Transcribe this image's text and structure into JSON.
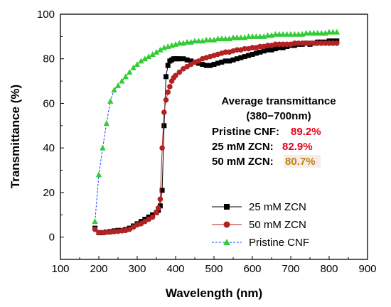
{
  "chart_data": {
    "type": "scatter",
    "title": "",
    "xlabel": "Wavelength (nm)",
    "ylabel": "Transmittance (%)",
    "xlim": [
      100,
      900
    ],
    "ylim": [
      -10,
      100
    ],
    "x_ticks": [
      "100",
      "200",
      "300",
      "400",
      "500",
      "600",
      "700",
      "800",
      "900"
    ],
    "y_ticks": [
      "0",
      "20",
      "40",
      "60",
      "80",
      "100"
    ],
    "grid": false,
    "legend_position": "bottom-right",
    "annotation": {
      "title_line1": "Average transmittance",
      "title_line2": "(380−700nm)",
      "rows": [
        {
          "label": "Pristine CNF:",
          "value": "89.2%",
          "color": "#e8001c"
        },
        {
          "label": "25 mM ZCN:",
          "value": "82.9%",
          "color": "#e8001c"
        },
        {
          "label": "50 mM ZCN:",
          "value": "80.7%",
          "color": "#b8860b"
        }
      ]
    },
    "series": [
      {
        "name": "25 mM ZCN",
        "marker": "square",
        "color": "#000000",
        "x": [
          190,
          200,
          210,
          220,
          230,
          240,
          250,
          260,
          270,
          280,
          290,
          300,
          310,
          320,
          330,
          340,
          350,
          355,
          360,
          365,
          370,
          375,
          380,
          385,
          390,
          395,
          400,
          405,
          410,
          420,
          430,
          440,
          450,
          460,
          470,
          480,
          490,
          500,
          510,
          520,
          530,
          540,
          550,
          560,
          570,
          580,
          590,
          600,
          610,
          620,
          630,
          640,
          650,
          660,
          670,
          680,
          690,
          700,
          710,
          720,
          730,
          740,
          750,
          760,
          770,
          780,
          790,
          800,
          810,
          820
        ],
        "y": [
          4,
          2,
          2,
          2.3,
          2.5,
          2.8,
          3,
          3,
          3.4,
          4,
          5,
          6,
          7,
          8,
          9,
          10,
          11,
          12,
          14,
          21,
          50,
          72,
          77,
          79,
          79.5,
          80,
          80,
          80,
          80,
          80,
          79.5,
          79,
          78.5,
          78,
          77.5,
          77,
          77,
          77.5,
          78,
          78.5,
          79,
          79,
          79.5,
          80,
          80.5,
          81,
          81.5,
          82,
          82.5,
          83,
          83.5,
          84,
          84,
          84.5,
          85,
          85,
          85.5,
          86,
          86,
          86.5,
          86.5,
          87,
          86.5,
          87,
          87.5,
          87.5,
          87.5,
          88,
          88,
          88
        ]
      },
      {
        "name": "50 mM ZCN",
        "marker": "circle",
        "color": "#b22222",
        "x": [
          190,
          200,
          210,
          220,
          230,
          240,
          250,
          260,
          270,
          280,
          290,
          300,
          310,
          320,
          330,
          340,
          350,
          355,
          360,
          365,
          370,
          375,
          380,
          385,
          390,
          395,
          400,
          410,
          420,
          430,
          440,
          450,
          460,
          470,
          480,
          490,
          500,
          510,
          520,
          530,
          540,
          550,
          560,
          570,
          580,
          590,
          600,
          610,
          620,
          630,
          640,
          650,
          660,
          670,
          680,
          690,
          700,
          710,
          720,
          730,
          740,
          750,
          760,
          770,
          780,
          790,
          800,
          810,
          820
        ],
        "y": [
          3.5,
          2,
          2,
          2.2,
          2.3,
          2.5,
          2.6,
          2.8,
          3,
          3.5,
          4.5,
          5.5,
          6,
          7,
          8,
          9,
          11,
          13,
          17,
          40,
          56,
          61.5,
          65,
          67.5,
          70,
          71.5,
          72.5,
          74,
          75.5,
          76.5,
          77.5,
          78.5,
          79,
          80,
          80.5,
          81,
          81.5,
          82,
          82.5,
          83,
          83,
          83.5,
          84,
          84,
          84.5,
          84.5,
          85,
          85,
          85.5,
          85.5,
          86,
          86,
          86.5,
          86.5,
          86.5,
          86.5,
          86.5,
          87,
          87,
          87,
          87,
          87,
          87,
          87,
          87,
          87,
          87,
          87,
          87
        ]
      },
      {
        "name": "Pristine CNF",
        "marker": "triangle",
        "color": "#32cd32",
        "x": [
          190,
          200,
          210,
          220,
          230,
          240,
          250,
          260,
          270,
          280,
          290,
          300,
          310,
          320,
          330,
          340,
          350,
          360,
          370,
          380,
          390,
          400,
          410,
          420,
          430,
          440,
          450,
          460,
          470,
          480,
          490,
          500,
          510,
          520,
          530,
          540,
          550,
          560,
          570,
          580,
          590,
          600,
          610,
          620,
          630,
          640,
          650,
          660,
          670,
          680,
          690,
          700,
          710,
          720,
          730,
          740,
          750,
          760,
          770,
          780,
          790,
          800,
          810,
          820
        ],
        "y": [
          7,
          28,
          40,
          51,
          61,
          66,
          68,
          70,
          72,
          74,
          76,
          77.5,
          79,
          80,
          81,
          82,
          83,
          84,
          85,
          85.5,
          86,
          86.5,
          87,
          87,
          87.5,
          87.5,
          88,
          88,
          88,
          88.5,
          88.5,
          88.5,
          89,
          89,
          89,
          89,
          89.5,
          89.5,
          89.5,
          89.5,
          90,
          90,
          90,
          90,
          90,
          90.5,
          90.5,
          91,
          91,
          91,
          91,
          91,
          91,
          91,
          91,
          91.5,
          91.5,
          91.5,
          91.5,
          91.5,
          91.5,
          92,
          92,
          92
        ]
      }
    ]
  }
}
